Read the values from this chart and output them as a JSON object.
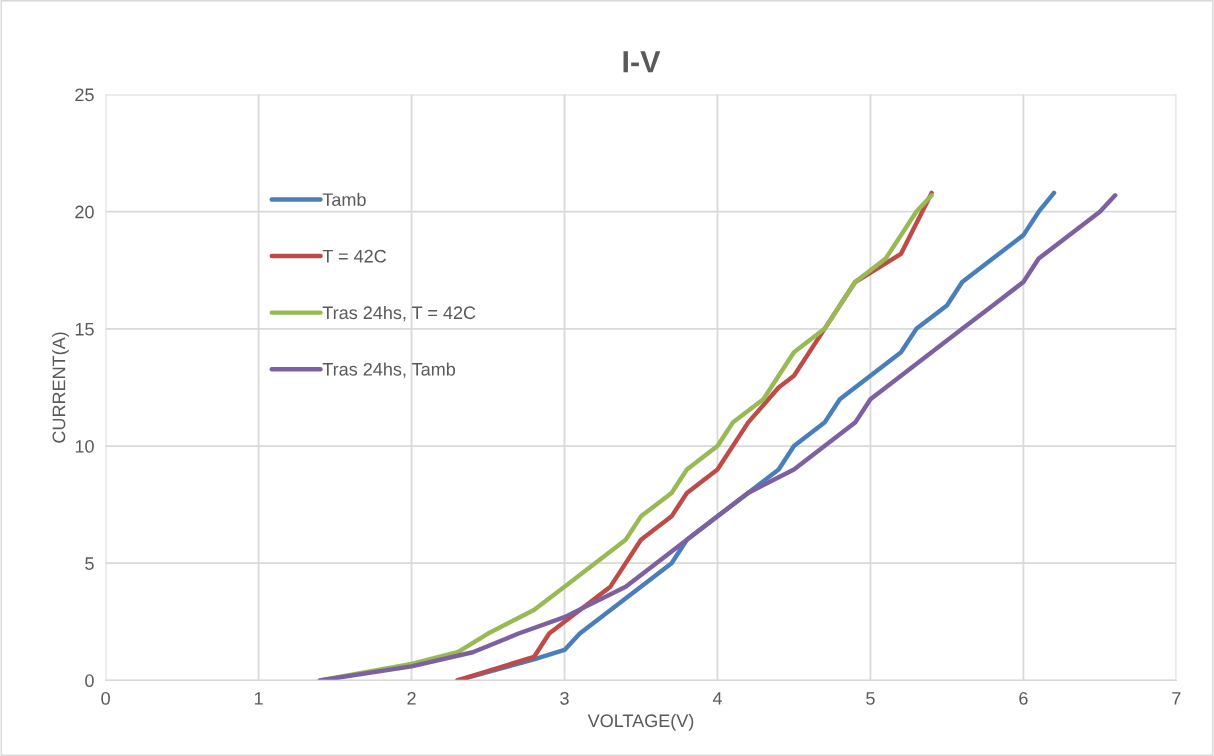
{
  "chart_data": {
    "type": "line",
    "title": "I-V",
    "xlabel": "VOLTAGE(V)",
    "ylabel": "CURRENT(A)",
    "xlim": [
      0,
      7
    ],
    "xticks": [
      0,
      1,
      2,
      3,
      4,
      5,
      6,
      7
    ],
    "ylim": [
      0,
      25
    ],
    "yticks": [
      0,
      5,
      10,
      15,
      20,
      25
    ],
    "grid": true,
    "legend": "top left",
    "marker": "none",
    "line_style": "solid",
    "series": [
      {
        "name": "Tamb",
        "color": "#4a7ebb",
        "x": [
          2.3,
          2.8,
          3.0,
          3.1,
          3.7,
          3.8,
          4.0,
          4.2,
          4.4,
          4.5,
          4.7,
          4.8,
          5.0,
          5.2,
          5.3,
          5.5,
          5.6,
          5.8,
          6.0,
          6.1,
          6.2
        ],
        "values": [
          0,
          0.9,
          1.3,
          2,
          5,
          6,
          7,
          8,
          9,
          10,
          11,
          12,
          13,
          14,
          15,
          16,
          17,
          18,
          19,
          20,
          20.8
        ]
      },
      {
        "name": "T = 42C",
        "color": "#be4b48",
        "x": [
          2.3,
          2.8,
          2.9,
          3.0,
          3.3,
          3.5,
          3.7,
          3.8,
          4.0,
          4.2,
          4.4,
          4.5,
          4.7,
          4.9,
          5.2,
          5.4
        ],
        "values": [
          0,
          1,
          2,
          2.5,
          4,
          6,
          7,
          8,
          9,
          11,
          12.5,
          13,
          15,
          17,
          18.2,
          20.8
        ]
      },
      {
        "name": "Tras 24hs, T = 42C",
        "color": "#98b954",
        "x": [
          1.4,
          2.0,
          2.3,
          2.5,
          2.8,
          3.0,
          3.4,
          3.5,
          3.7,
          3.8,
          4.0,
          4.1,
          4.3,
          4.5,
          4.7,
          4.9,
          5.1,
          5.3,
          5.4
        ],
        "values": [
          0,
          0.7,
          1.2,
          2,
          3,
          4,
          6,
          7,
          8,
          9,
          10,
          11,
          12,
          14,
          15,
          17,
          18,
          20,
          20.7
        ]
      },
      {
        "name": "Tras 24hs, Tamb",
        "color": "#7d60a0",
        "x": [
          1.4,
          2.0,
          2.4,
          2.7,
          3.0,
          3.4,
          3.8,
          4.2,
          4.5,
          4.9,
          5.0,
          5.2,
          5.4,
          5.6,
          5.8,
          6.0,
          6.1,
          6.5,
          6.6
        ],
        "values": [
          0,
          0.6,
          1.2,
          2,
          2.7,
          4,
          6,
          8,
          9,
          11,
          12,
          13,
          14,
          15,
          16,
          17,
          18,
          20,
          20.7
        ]
      }
    ]
  }
}
